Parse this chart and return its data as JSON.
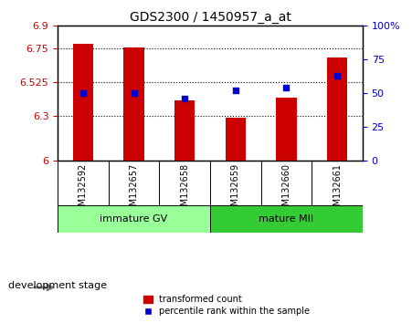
{
  "title": "GDS2300 / 1450957_a_at",
  "categories": [
    "GSM132592",
    "GSM132657",
    "GSM132658",
    "GSM132659",
    "GSM132660",
    "GSM132661"
  ],
  "bar_values": [
    6.78,
    6.755,
    6.405,
    6.285,
    6.42,
    6.69
  ],
  "percentile_values": [
    50,
    50,
    46,
    52,
    54,
    63
  ],
  "bar_color": "#cc0000",
  "dot_color": "#0000cc",
  "ymin": 6.0,
  "ymax": 6.9,
  "yticks": [
    6.0,
    6.3,
    6.525,
    6.75,
    6.9
  ],
  "ytick_labels": [
    "6",
    "6.3",
    "6.525",
    "6.75",
    "6.9"
  ],
  "y2min": 0,
  "y2max": 100,
  "y2ticks": [
    0,
    25,
    50,
    75,
    100
  ],
  "y2tick_labels": [
    "0",
    "25",
    "50",
    "75",
    "100%"
  ],
  "group1_label": "immature GV",
  "group2_label": "mature MII",
  "group1_indices": [
    0,
    1,
    2
  ],
  "group2_indices": [
    3,
    4,
    5
  ],
  "group1_color": "#99ff99",
  "group2_color": "#33cc33",
  "stage_label": "development stage",
  "legend_bar_label": "transformed count",
  "legend_dot_label": "percentile rank within the sample"
}
